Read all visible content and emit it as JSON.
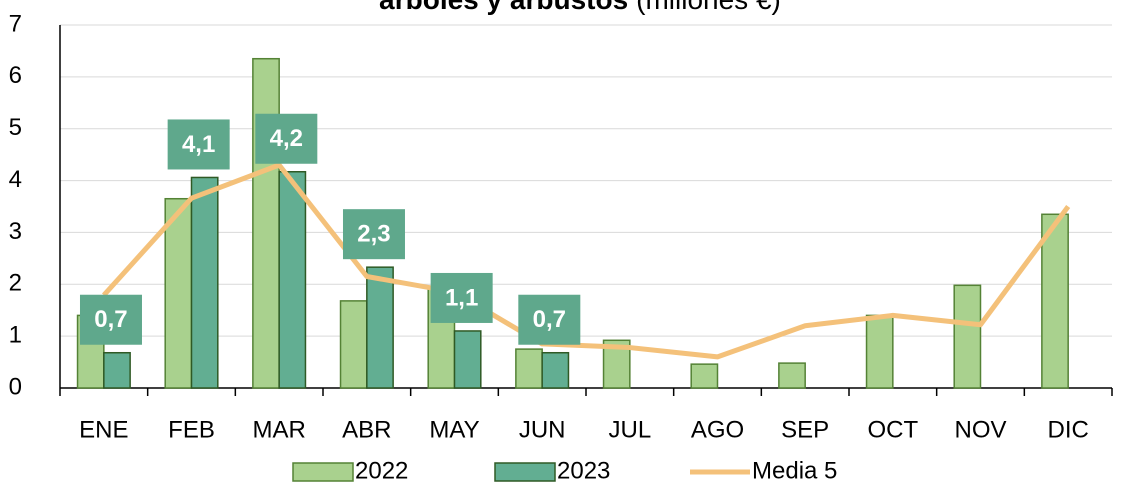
{
  "chart_data": {
    "type": "bar",
    "title": "árboles y arbustos",
    "subtitle": "(millones €)",
    "categories": [
      "ENE",
      "FEB",
      "MAR",
      "ABR",
      "MAY",
      "JUN",
      "JUL",
      "AGO",
      "SEP",
      "OCT",
      "NOV",
      "DIC"
    ],
    "series": [
      {
        "name": "2022",
        "color": "#a9d18e",
        "values": [
          1.4,
          3.65,
          6.35,
          1.68,
          1.95,
          0.75,
          0.92,
          0.46,
          0.48,
          1.4,
          1.98,
          3.35
        ]
      },
      {
        "name": "2023",
        "color": "#62ae92",
        "values": [
          0.68,
          4.06,
          4.17,
          2.33,
          1.1,
          0.68,
          null,
          null,
          null,
          null,
          null,
          null
        ],
        "value_labels": [
          "0,7",
          "4,1",
          "4,2",
          "2,3",
          "1,1",
          "0,7",
          null,
          null,
          null,
          null,
          null,
          null
        ]
      },
      {
        "name": "Media 5",
        "type": "line",
        "color": "#f4c17a",
        "values": [
          1.79,
          3.66,
          4.3,
          2.15,
          1.85,
          0.85,
          0.78,
          0.6,
          1.2,
          1.4,
          1.22,
          3.5
        ]
      }
    ],
    "ylim": [
      0,
      7
    ],
    "yticks": [
      0,
      1,
      2,
      3,
      4,
      5,
      6,
      7
    ],
    "grid": true,
    "legend": "bottom"
  }
}
